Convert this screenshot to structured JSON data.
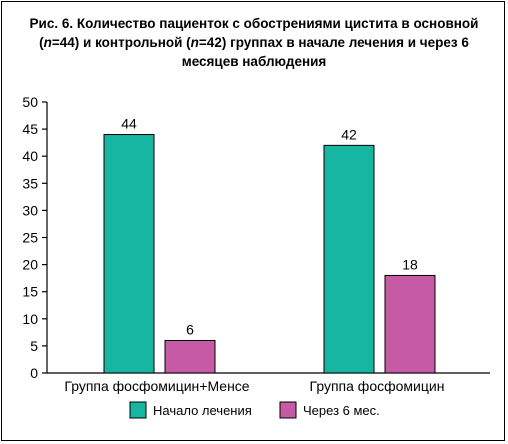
{
  "chart_data": {
    "type": "bar",
    "title_parts": [
      {
        "text": "Рис. 6. Количество пациенток с обострениями цистита в основной (",
        "italic": false
      },
      {
        "text": "n",
        "italic": true
      },
      {
        "text": "=44) и контрольной (",
        "italic": false
      },
      {
        "text": "n",
        "italic": true
      },
      {
        "text": "=42) группах в начале лечения и через 6 месяцев наблюдения",
        "italic": false
      }
    ],
    "categories": [
      "Группа фосфомицин+Менсе",
      "Группа фосфомицин"
    ],
    "series": [
      {
        "name": "Начало лечения",
        "color": "#16b6a2",
        "values": [
          44,
          42
        ]
      },
      {
        "name": "Через 6 мес.",
        "color": "#c75aa4",
        "values": [
          6,
          18
        ]
      }
    ],
    "ylim": [
      0,
      50
    ],
    "yticks": [
      0,
      5,
      10,
      15,
      20,
      25,
      30,
      35,
      40,
      45,
      50
    ],
    "legend_position": "bottom",
    "grid": false
  }
}
